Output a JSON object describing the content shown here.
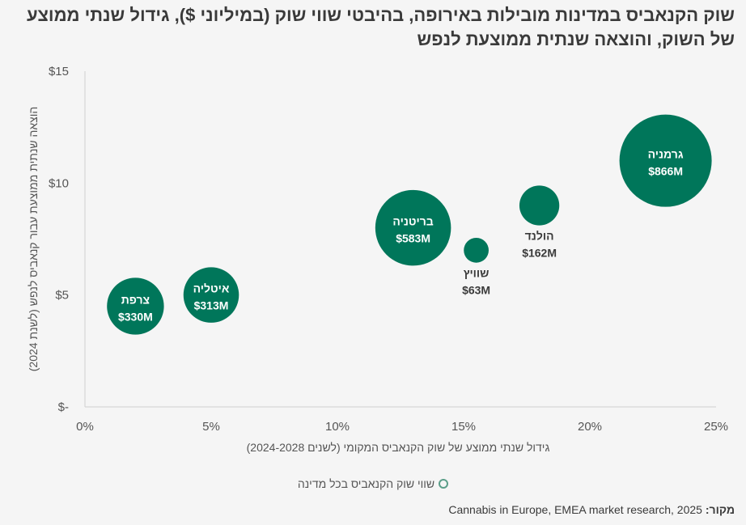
{
  "chart_data": {
    "type": "bubble",
    "title": "שוק הקנאביס במדינות מובילות באירופה, בהיבטי שווי שוק (במיליוני $), גידול שנתי ממוצע של השוק, והוצאה שנתית ממוצעת לנפש",
    "xlabel": "גידול שנתי ממוצע של שוק הקנאביס המקומי (לשנים 2024-2028)",
    "ylabel": "הוצאה שנתית ממוצעת עבור קנאביס לנפש (לשנת 2024)",
    "xlim": [
      0,
      25
    ],
    "ylim": [
      0,
      15
    ],
    "x_ticks": [
      {
        "value": 0,
        "label": "0%"
      },
      {
        "value": 5,
        "label": "5%"
      },
      {
        "value": 10,
        "label": "10%"
      },
      {
        "value": 15,
        "label": "15%"
      },
      {
        "value": 20,
        "label": "20%"
      },
      {
        "value": 25,
        "label": "25%"
      }
    ],
    "y_ticks": [
      {
        "value": 0,
        "label": "$-"
      },
      {
        "value": 5,
        "label": "$5"
      },
      {
        "value": 10,
        "label": "$10"
      },
      {
        "value": 15,
        "label": "$15"
      }
    ],
    "grid": false,
    "bubble_color": "#00765a",
    "points": [
      {
        "name": "צרפת",
        "x": 2.0,
        "y": 4.5,
        "size": 330,
        "value_label": "$330M"
      },
      {
        "name": "איטליה",
        "x": 5.0,
        "y": 5.0,
        "size": 313,
        "value_label": "$313M"
      },
      {
        "name": "בריטניה",
        "x": 13.0,
        "y": 8.0,
        "size": 583,
        "value_label": "$583M"
      },
      {
        "name": "שוויץ",
        "x": 15.5,
        "y": 7.0,
        "size": 63,
        "value_label": "$63M"
      },
      {
        "name": "הולנד",
        "x": 18.0,
        "y": 9.0,
        "size": 162,
        "value_label": "$162M"
      },
      {
        "name": "גרמניה",
        "x": 23.0,
        "y": 11.0,
        "size": 866,
        "value_label": "$866M"
      }
    ],
    "legend": {
      "label": "שווי שוק הקנאביס בכל מדינה",
      "position": "bottom"
    }
  },
  "source": {
    "label": "מקור:",
    "text": "Cannabis in Europe, EMEA market research, 2025"
  }
}
